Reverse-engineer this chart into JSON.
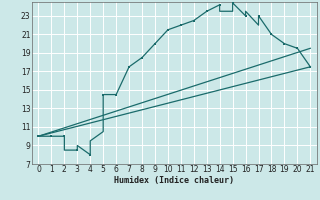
{
  "xlabel": "Humidex (Indice chaleur)",
  "bg_color": "#cce8e8",
  "grid_color": "#ffffff",
  "line_color": "#1a6b6b",
  "xlim": [
    -0.5,
    21.5
  ],
  "ylim": [
    7,
    24.5
  ],
  "xticks": [
    0,
    1,
    2,
    3,
    4,
    5,
    6,
    7,
    8,
    9,
    10,
    11,
    12,
    13,
    14,
    15,
    16,
    17,
    18,
    19,
    20,
    21
  ],
  "yticks": [
    7,
    9,
    11,
    13,
    15,
    17,
    19,
    21,
    23
  ],
  "series1_x": [
    0,
    1,
    2,
    2,
    3,
    3,
    4,
    4,
    5,
    5,
    6,
    7,
    7,
    8,
    9,
    10,
    11,
    12,
    13,
    14,
    14,
    15,
    15,
    16,
    16,
    17,
    17,
    18,
    19,
    20,
    21
  ],
  "series1_y": [
    10,
    10,
    10,
    8.5,
    8.5,
    9.0,
    8.0,
    9.5,
    10.5,
    14.5,
    14.5,
    17.5,
    17.5,
    18.5,
    20,
    21.5,
    22,
    22.5,
    23.5,
    24.2,
    23.5,
    23.5,
    24.4,
    23.0,
    23.5,
    22.0,
    23.0,
    21.0,
    20.0,
    19.5,
    17.5
  ],
  "series2_x": [
    0,
    21
  ],
  "series2_y": [
    10.0,
    19.5
  ],
  "series3_x": [
    0,
    21
  ],
  "series3_y": [
    10.0,
    17.5
  ],
  "markers_x": [
    0,
    1,
    2,
    3,
    4,
    5,
    6,
    7,
    8,
    9,
    10,
    11,
    12,
    13,
    14,
    15,
    16,
    17,
    18,
    19,
    20,
    21
  ],
  "markers_y": [
    10,
    10,
    10,
    8.5,
    8.0,
    14.5,
    14.5,
    17.5,
    18.5,
    20,
    21.5,
    22,
    22.5,
    23.5,
    24.2,
    24.4,
    23.0,
    23.0,
    21.0,
    20.0,
    19.5,
    17.5
  ]
}
